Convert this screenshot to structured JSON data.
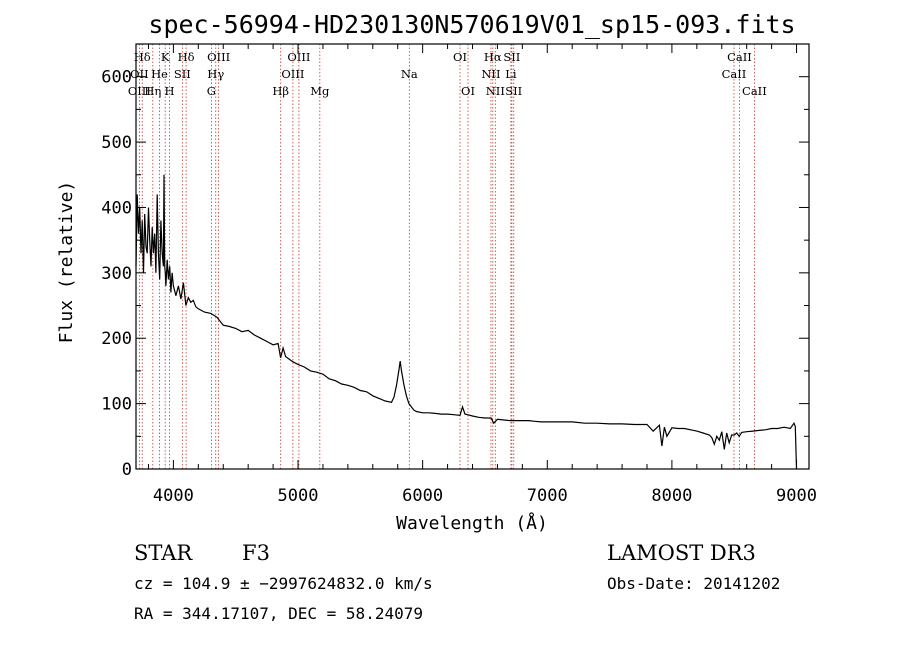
{
  "chart_data": {
    "type": "line",
    "title": "spec-56994-HD230130N570619V01_sp15-093.fits",
    "xlabel": "Wavelength (Å)",
    "ylabel": "Flux (relative)",
    "xlim": [
      3700,
      9100
    ],
    "ylim": [
      0,
      650
    ],
    "xticks": [
      4000,
      5000,
      6000,
      7000,
      8000,
      9000
    ],
    "yticks": [
      0,
      100,
      200,
      300,
      400,
      500,
      600
    ],
    "series": [
      {
        "name": "flux",
        "x": [
          3700,
          3710,
          3720,
          3730,
          3740,
          3750,
          3760,
          3770,
          3780,
          3790,
          3800,
          3810,
          3820,
          3830,
          3840,
          3850,
          3860,
          3870,
          3880,
          3890,
          3900,
          3910,
          3920,
          3925,
          3930,
          3935,
          3940,
          3950,
          3960,
          3970,
          3980,
          3990,
          4000,
          4020,
          4040,
          4060,
          4080,
          4100,
          4120,
          4140,
          4160,
          4180,
          4200,
          4250,
          4300,
          4350,
          4400,
          4450,
          4500,
          4550,
          4600,
          4650,
          4700,
          4750,
          4800,
          4840,
          4860,
          4880,
          4900,
          4950,
          5000,
          5050,
          5100,
          5150,
          5200,
          5250,
          5300,
          5350,
          5400,
          5450,
          5500,
          5550,
          5600,
          5650,
          5700,
          5750,
          5770,
          5790,
          5810,
          5820,
          5830,
          5850,
          5870,
          5890,
          5910,
          5930,
          5950,
          6000,
          6050,
          6100,
          6150,
          6200,
          6250,
          6300,
          6320,
          6340,
          6360,
          6400,
          6450,
          6500,
          6550,
          6570,
          6600,
          6650,
          6700,
          6750,
          6800,
          6850,
          6900,
          6950,
          7000,
          7100,
          7200,
          7300,
          7400,
          7500,
          7600,
          7700,
          7800,
          7850,
          7900,
          7920,
          7940,
          7960,
          8000,
          8050,
          8100,
          8150,
          8200,
          8250,
          8300,
          8320,
          8340,
          8360,
          8380,
          8400,
          8420,
          8440,
          8460,
          8480,
          8500,
          8520,
          8540,
          8560,
          8600,
          8650,
          8700,
          8750,
          8800,
          8850,
          8900,
          8950,
          8980,
          8990,
          9000
        ],
        "y": [
          310,
          420,
          360,
          400,
          330,
          380,
          300,
          390,
          340,
          330,
          400,
          350,
          310,
          370,
          330,
          360,
          300,
          420,
          330,
          290,
          380,
          330,
          310,
          450,
          310,
          300,
          280,
          320,
          290,
          310,
          270,
          300,
          280,
          265,
          280,
          260,
          285,
          250,
          262,
          255,
          258,
          248,
          245,
          240,
          238,
          232,
          220,
          218,
          215,
          210,
          212,
          205,
          200,
          195,
          190,
          192,
          170,
          185,
          172,
          165,
          160,
          156,
          150,
          148,
          145,
          138,
          135,
          130,
          128,
          125,
          120,
          118,
          112,
          108,
          104,
          102,
          110,
          128,
          152,
          165,
          150,
          128,
          112,
          100,
          95,
          90,
          88,
          86,
          86,
          85,
          84,
          84,
          83,
          82,
          95,
          84,
          83,
          81,
          79,
          78,
          78,
          70,
          76,
          75,
          74,
          74,
          74,
          74,
          73,
          72,
          72,
          72,
          72,
          70,
          70,
          69,
          69,
          68,
          68,
          58,
          67,
          35,
          64,
          50,
          63,
          62,
          62,
          60,
          58,
          55,
          52,
          48,
          38,
          50,
          44,
          57,
          30,
          55,
          40,
          52,
          52,
          55,
          50,
          56,
          57,
          58,
          59,
          60,
          62,
          62,
          64,
          62,
          70,
          65,
          0
        ]
      }
    ],
    "spectral_lines": [
      {
        "label": "Hδ",
        "x": 3750,
        "row": 1
      },
      {
        "label": "K",
        "x": 3934,
        "row": 1
      },
      {
        "label": "Hδ",
        "x": 4102,
        "row": 1
      },
      {
        "label": "OIII",
        "x": 4363,
        "row": 1
      },
      {
        "label": "OIII",
        "x": 5007,
        "row": 1
      },
      {
        "label": "OI",
        "x": 6300,
        "row": 1
      },
      {
        "label": "Hα",
        "x": 6563,
        "row": 1
      },
      {
        "label": "SII",
        "x": 6716,
        "row": 1
      },
      {
        "label": "CaII",
        "x": 8542,
        "row": 1
      },
      {
        "label": "OII",
        "x": 3727,
        "row": 2
      },
      {
        "label": "He",
        "x": 3889,
        "row": 2
      },
      {
        "label": "SII",
        "x": 4072,
        "row": 2
      },
      {
        "label": "Hγ",
        "x": 4340,
        "row": 2
      },
      {
        "label": "OIII",
        "x": 4959,
        "row": 2
      },
      {
        "label": "Na",
        "x": 5893,
        "row": 2
      },
      {
        "label": "NII",
        "x": 6548,
        "row": 2
      },
      {
        "label": "Li",
        "x": 6708,
        "row": 2
      },
      {
        "label": "CaII",
        "x": 8498,
        "row": 2
      },
      {
        "label": "OIII",
        "x": 3727,
        "row": 3
      },
      {
        "label": "Hη",
        "x": 3835,
        "row": 3
      },
      {
        "label": "H",
        "x": 3969,
        "row": 3
      },
      {
        "label": "G",
        "x": 4305,
        "row": 3
      },
      {
        "label": "Hβ",
        "x": 4861,
        "row": 3
      },
      {
        "label": "Mg",
        "x": 5175,
        "row": 3
      },
      {
        "label": "OI",
        "x": 6364,
        "row": 3
      },
      {
        "label": "NII",
        "x": 6583,
        "row": 3
      },
      {
        "label": "SII",
        "x": 6731,
        "row": 3
      },
      {
        "label": "CaII",
        "x": 8662,
        "row": 3
      }
    ],
    "line_markers_x": [
      3727,
      3750,
      3835,
      3889,
      3934,
      3969,
      4072,
      4102,
      4305,
      4340,
      4363,
      4861,
      4959,
      5007,
      5175,
      5893,
      6300,
      6364,
      6548,
      6563,
      6583,
      6708,
      6716,
      6731,
      8498,
      8542,
      8662
    ]
  },
  "info": {
    "class_label": "STAR",
    "subclass_label": "F3",
    "survey": "LAMOST DR3",
    "cz_text": "cz = 104.9 ± −2997624832.0 km/s",
    "obs_date": "Obs-Date: 20141202",
    "radec_text": "RA = 344.17107, DEC =  58.24079"
  },
  "colors": {
    "line_marker": "#c0392b",
    "spectrum": "#000000",
    "axes": "#000000"
  }
}
